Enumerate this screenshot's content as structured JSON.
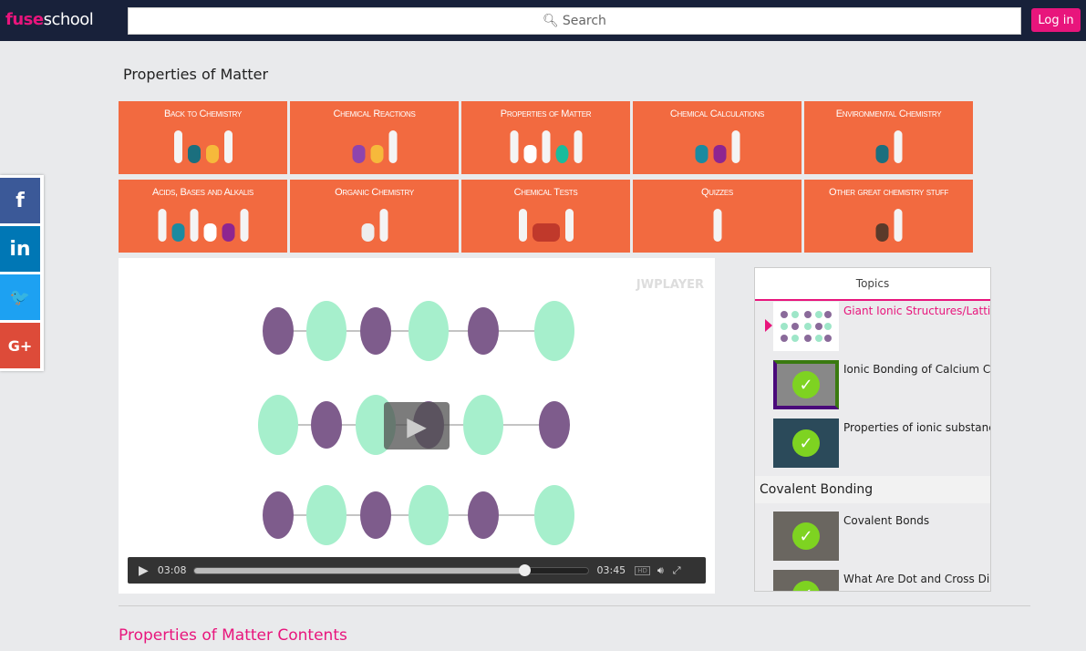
{
  "header": {
    "logo_part1": "fuse",
    "logo_part2": "school",
    "search_placeholder": "Search",
    "login": "Log in"
  },
  "page_title": "Properties of Matter",
  "tiles": [
    {
      "label": "Back to Chemistry"
    },
    {
      "label": "Chemical Reactions"
    },
    {
      "label": "Properties of Matter"
    },
    {
      "label": "Chemical Calculations"
    },
    {
      "label": "Environmental Chemistry"
    },
    {
      "label": "Acids, Bases and Alkalis"
    },
    {
      "label": "Organic Chemistry"
    },
    {
      "label": "Chemical Tests"
    },
    {
      "label": "Quizzes"
    },
    {
      "label": "Other great chemistry stuff"
    }
  ],
  "social": [
    {
      "icon": "facebook-icon",
      "glyph": "f",
      "color": "#3b5998"
    },
    {
      "icon": "linkedin-icon",
      "glyph": "in",
      "color": "#0077b5"
    },
    {
      "icon": "twitter-icon",
      "glyph": "🐦",
      "color": "#1da1f2"
    },
    {
      "icon": "google-plus-icon",
      "glyph": "G+",
      "color": "#dd4b39"
    }
  ],
  "player": {
    "watermark": "JWPLAYER",
    "current_time": "03:08",
    "duration": "03:45",
    "progress": 0.836,
    "hd": "HD"
  },
  "topics": {
    "header": "Topics",
    "items": [
      {
        "title": "Giant Ionic Structures/Lattices",
        "active": true,
        "watched": false
      },
      {
        "title": "Ionic Bonding of Calcium Chloride",
        "watched": true
      },
      {
        "title": "Properties of ionic substances",
        "watched": true
      }
    ],
    "section": "Covalent Bonding",
    "section_items": [
      {
        "title": "Covalent Bonds",
        "watched": true
      },
      {
        "title": "What Are Dot and Cross Diagrams",
        "watched": true
      }
    ]
  },
  "contents_title": "Properties of Matter Contents",
  "colors": {
    "brand": "#e8157c",
    "tile": "#f26a40",
    "nav": "#18213a",
    "check": "#7ed321"
  }
}
